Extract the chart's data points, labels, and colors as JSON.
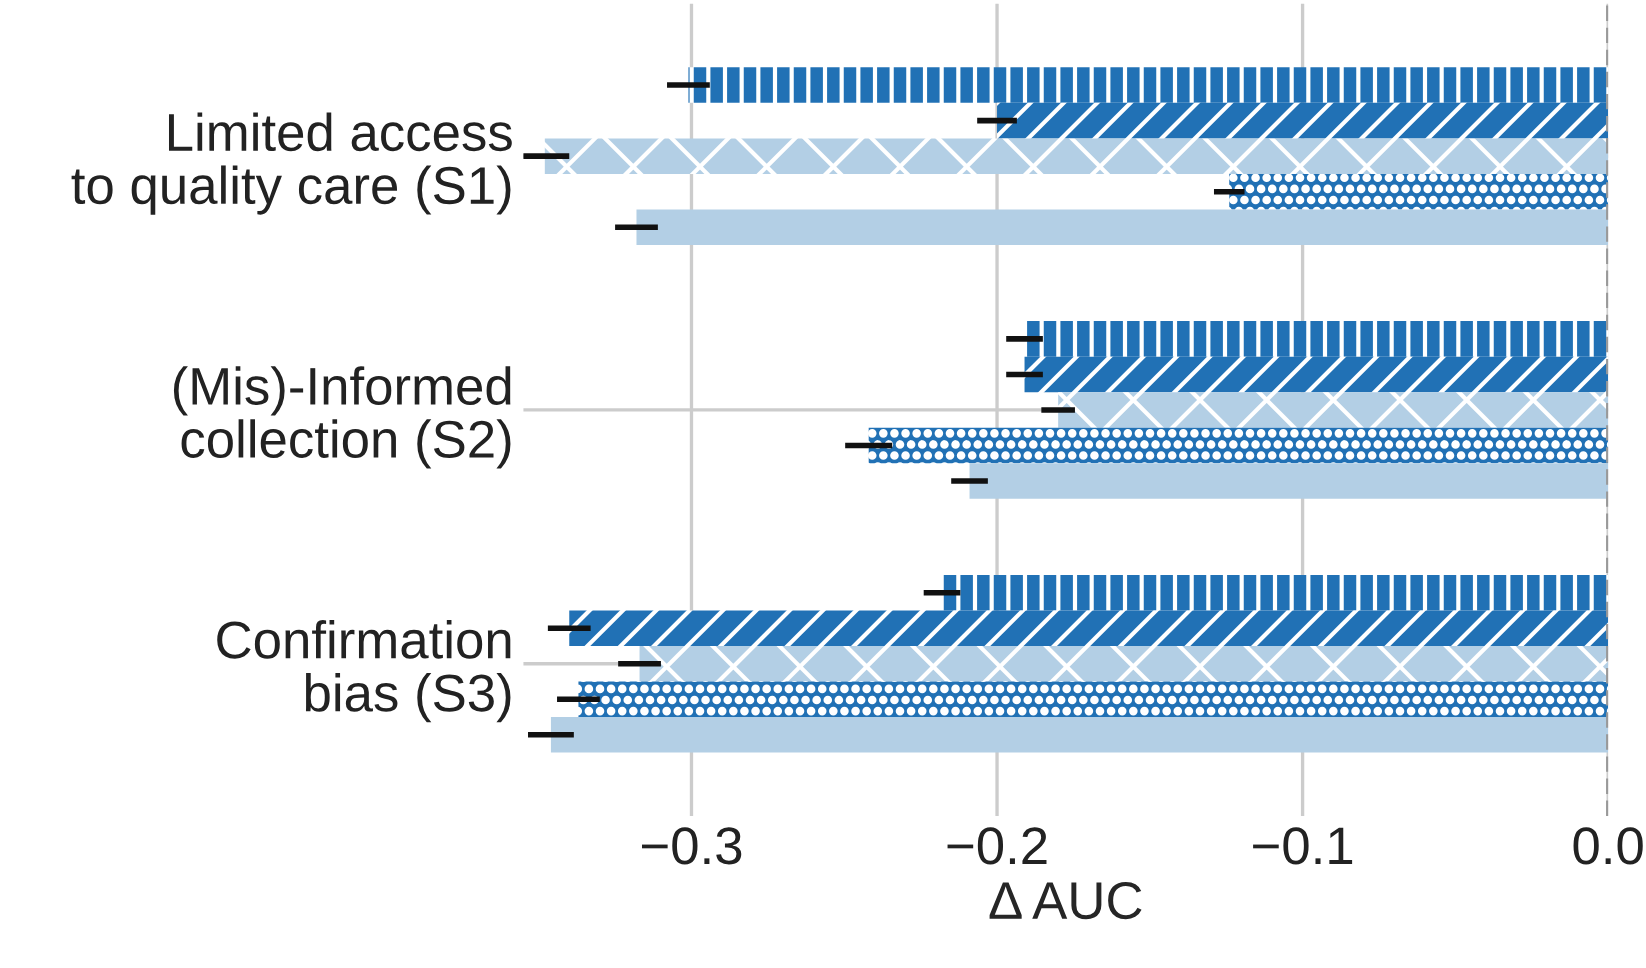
{
  "chart_data": {
    "type": "bar",
    "orientation": "horizontal",
    "xlabel": "Δ AUC",
    "categories": [
      "Limited access\nto quality care (S1)",
      "(Mis)-Informed\ncollection (S2)",
      "Confirmation\nbias (S3)"
    ],
    "series": [
      {
        "color": "#2171b5",
        "values": [
          -0.301,
          -0.191,
          -0.218
        ],
        "errors": [
          0.007,
          0.006,
          0.006
        ]
      },
      {
        "color": "#2171b5",
        "values": [
          -0.2,
          -0.191,
          -0.34
        ],
        "errors": [
          0.0065,
          0.006,
          0.007
        ]
      },
      {
        "color": "#b3cfe5",
        "values": [
          -0.348,
          -0.18,
          -0.317
        ],
        "errors": [
          0.008,
          0.0055,
          0.007
        ]
      },
      {
        "color": "#2171b5",
        "values": [
          -0.124,
          -0.242,
          -0.337
        ],
        "errors": [
          0.005,
          0.0077,
          0.007
        ]
      },
      {
        "color": "#b3cfe5",
        "values": [
          -0.318,
          -0.209,
          -0.346
        ],
        "errors": [
          0.007,
          0.006,
          0.0075
        ]
      }
    ],
    "xlim": [
      -0.355,
      0.0
    ],
    "xticks": [
      -0.3,
      -0.2,
      -0.1,
      {
        "value": 0.0,
        "label": "0.0"
      }
    ],
    "ref_lines": [
      {
        "axis": "x",
        "value": 0.0,
        "line_style": "dashed",
        "color": "#999999"
      }
    ],
    "grid": true,
    "legend": false
  }
}
